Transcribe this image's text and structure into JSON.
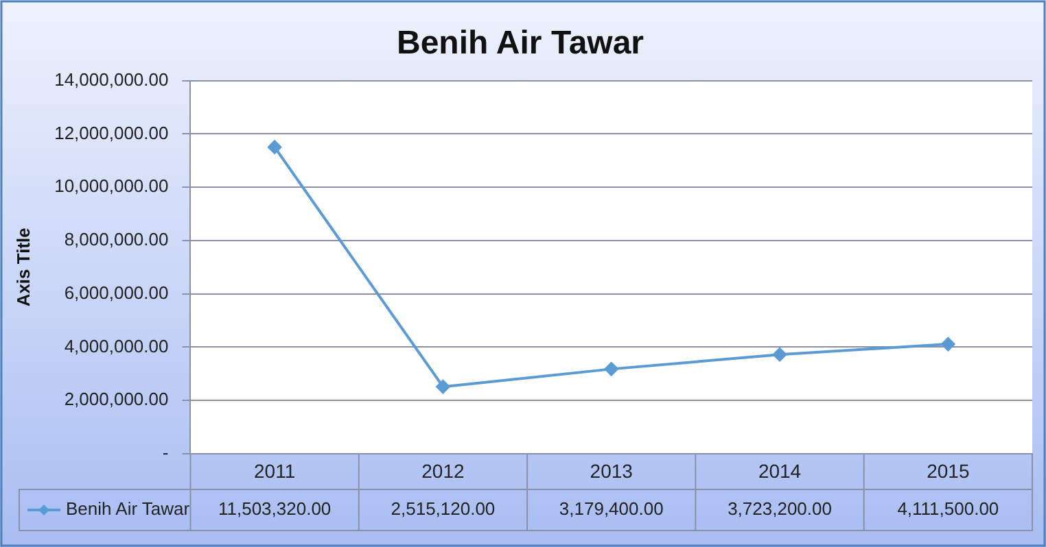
{
  "chart_data": {
    "type": "line",
    "title": "Benih Air Tawar",
    "ylabel": "Axis Title",
    "categories": [
      "2011",
      "2012",
      "2013",
      "2014",
      "2015"
    ],
    "series": [
      {
        "name": "Benih Air Tawar",
        "color": "#5b9bd5",
        "values": [
          11503320,
          2515120,
          3179400,
          3723200,
          4111500
        ],
        "value_labels": [
          "11,503,320.00",
          "2,515,120.00",
          "3,179,400.00",
          "3,723,200.00",
          "4,111,500.00"
        ]
      }
    ],
    "ylim": [
      0,
      14000000
    ],
    "yticks": [
      {
        "value": 0,
        "label": "-"
      },
      {
        "value": 2000000,
        "label": "2,000,000.00"
      },
      {
        "value": 4000000,
        "label": "4,000,000.00"
      },
      {
        "value": 6000000,
        "label": "6,000,000.00"
      },
      {
        "value": 8000000,
        "label": "8,000,000.00"
      },
      {
        "value": 10000000,
        "label": "10,000,000.00"
      },
      {
        "value": 12000000,
        "label": "12,000,000.00"
      },
      {
        "value": 14000000,
        "label": "14,000,000.00"
      }
    ],
    "grid": "y",
    "legend": "bottom",
    "marker": "diamond",
    "line_style": "solid"
  }
}
